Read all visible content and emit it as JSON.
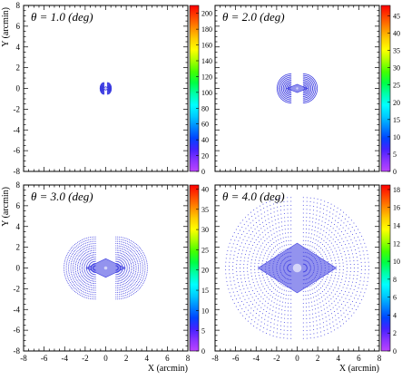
{
  "chart_data": [
    {
      "type": "scatter",
      "title": "θ = 1.0 (deg)",
      "xlabel": "",
      "ylabel": "Y (arcmin)",
      "xlim": [
        -8,
        8
      ],
      "ylim": [
        -8,
        8
      ],
      "xticks": [],
      "yticks": [
        "-8",
        "-6",
        "-4",
        "-2",
        "0",
        "2",
        "4",
        "6",
        "8"
      ],
      "colorbar": {
        "range": [
          0,
          210
        ],
        "ticks": [
          0,
          20,
          40,
          60,
          80,
          100,
          120,
          140,
          160,
          180,
          200
        ]
      },
      "pattern": {
        "lobe_width": 0.45,
        "lobe_height": 0.55,
        "lobe_center_x": 0.16,
        "diamond_half_width": 0.3,
        "diamond_half_height": 0.18,
        "rings": 5
      }
    },
    {
      "type": "scatter",
      "title": "θ = 2.0 (deg)",
      "xlabel": "",
      "ylabel": "",
      "xlim": [
        -8,
        8
      ],
      "ylim": [
        -8,
        8
      ],
      "xticks": [],
      "yticks": [],
      "colorbar": {
        "range": [
          0,
          48
        ],
        "ticks": [
          0,
          5,
          10,
          15,
          20,
          25,
          30,
          35,
          40,
          45
        ]
      },
      "pattern": {
        "lobe_width": 1.6,
        "lobe_height": 1.4,
        "lobe_center_x": 0.6,
        "diamond_half_width": 1.0,
        "diamond_half_height": 0.4,
        "rings": 9
      }
    },
    {
      "type": "scatter",
      "title": "θ = 3.0 (deg)",
      "xlabel": "",
      "ylabel": "Y (arcmin)",
      "xlim": [
        -8,
        8
      ],
      "ylim": [
        -8,
        8
      ],
      "xticks": [],
      "yticks": [
        "-8",
        "-6",
        "-4",
        "-2",
        "0",
        "2",
        "4",
        "6",
        "8"
      ],
      "colorbar": {
        "range": [
          0,
          41
        ],
        "ticks": [
          0,
          5,
          10,
          15,
          20,
          25,
          30,
          35,
          40
        ]
      },
      "pattern": {
        "lobe_width": 3.6,
        "lobe_height": 3.0,
        "lobe_center_x": 1.0,
        "diamond_half_width": 1.9,
        "diamond_half_height": 0.9,
        "rings": 14
      }
    },
    {
      "type": "scatter",
      "title": "θ = 4.0 (deg)",
      "xlabel": "X (arcmin)",
      "ylabel": "",
      "xlim": [
        -8,
        8
      ],
      "ylim": [
        -8,
        8
      ],
      "xticks": [
        "-8",
        "-6",
        "-4",
        "-2",
        "0",
        "2",
        "4",
        "6",
        "8"
      ],
      "yticks": [],
      "colorbar": {
        "range": [
          0,
          18.5
        ],
        "ticks": [
          0,
          2,
          4,
          6,
          8,
          10,
          12,
          14,
          16,
          18
        ]
      },
      "pattern": {
        "lobe_width": 7.5,
        "lobe_height": 6.8,
        "lobe_center_x": 0.6,
        "diamond_half_width": 3.8,
        "diamond_half_height": 2.4,
        "rings": 18
      }
    }
  ],
  "bottom_left_xlabel": "X (arcmin)",
  "bottom_left_xticks": [
    "-8",
    "-6",
    "-4",
    "-2",
    "0",
    "2",
    "4",
    "6",
    "8"
  ],
  "colors": {
    "points": "#3a3ae0",
    "frame": "#000000"
  }
}
